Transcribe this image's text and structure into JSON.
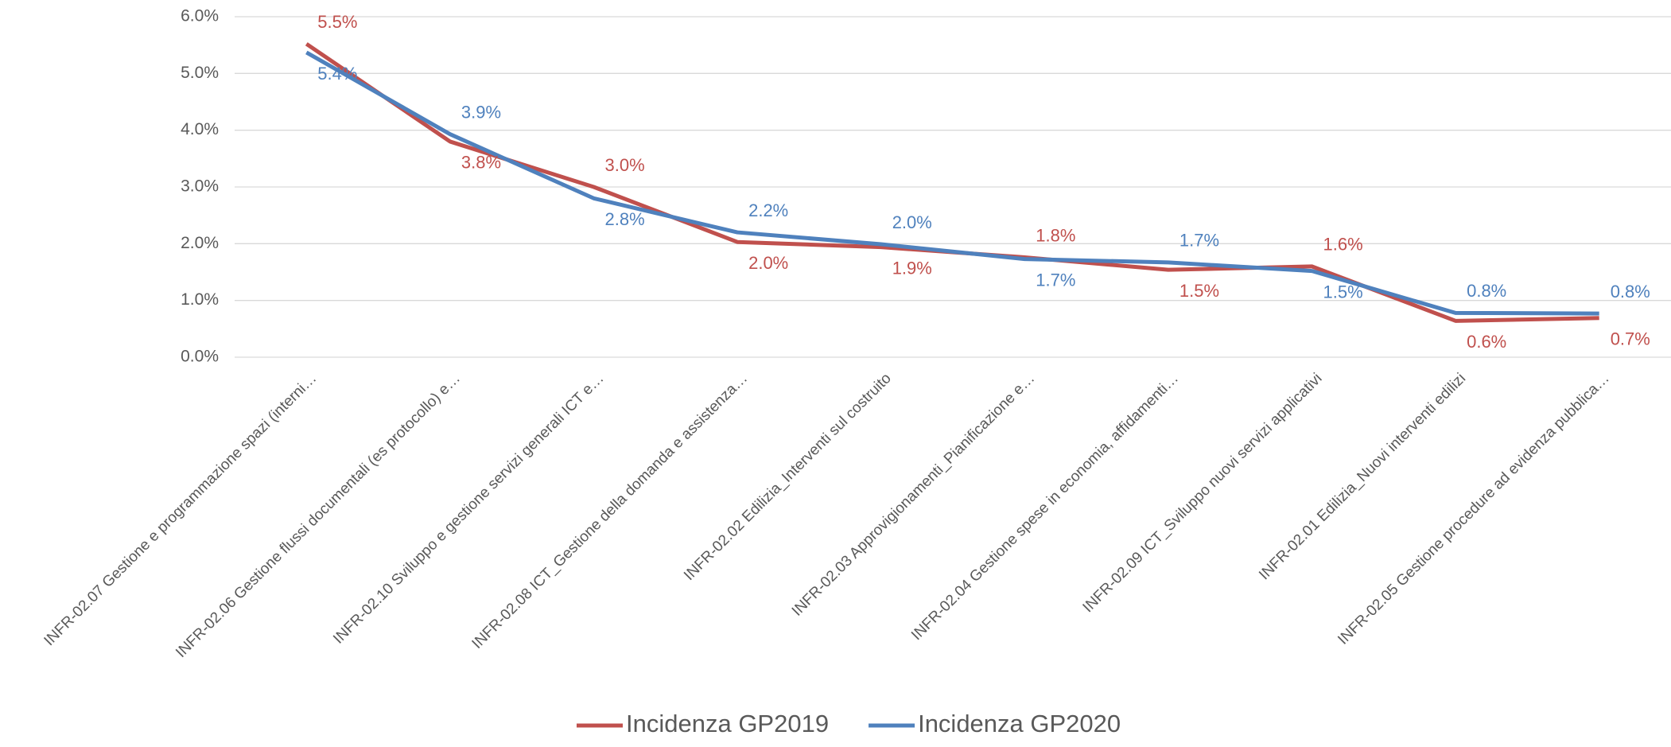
{
  "chart_data": {
    "type": "line",
    "categories": [
      "INFR-02.07 Gestione e programmazione spazi (interni…",
      "INFR-02.06 Gestione flussi documentali (es protocollo) e…",
      "INFR-02.10 Sviluppo e gestione servizi generali ICT e…",
      "INFR-02.08 ICT_Gestione della domanda e assistenza…",
      "INFR-02.02 Edilizia_Interventi sul costruito",
      "INFR-02.03 Approvigionamenti_Pianificazione e…",
      "INFR-02.04 Gestione spese in economia, affidamenti…",
      "INFR-02.09 ICT_Sviluppo nuovi servizi applicativi",
      "INFR-02.01 Edilizia_Nuovi interventi edilizi",
      "INFR-02.05 Gestione procedure ad evidenza pubblica…"
    ],
    "series": [
      {
        "name": "Incidenza GP2019",
        "color": "#c0504d",
        "values": [
          5.52,
          3.8,
          3.0,
          2.03,
          1.94,
          1.76,
          1.54,
          1.6,
          0.64,
          0.69
        ],
        "value_labels": [
          "5.5%",
          "3.8%",
          "3.0%",
          "2.0%",
          "1.9%",
          "1.8%",
          "1.5%",
          "1.6%",
          "0.6%",
          "0.7%"
        ]
      },
      {
        "name": "Incidenza GP2020",
        "color": "#4f81bd",
        "values": [
          5.37,
          3.93,
          2.8,
          2.2,
          1.99,
          1.73,
          1.67,
          1.52,
          0.78,
          0.77
        ],
        "value_labels": [
          "5.4%",
          "3.9%",
          "2.8%",
          "2.2%",
          "2.0%",
          "1.7%",
          "1.7%",
          "1.5%",
          "0.8%",
          "0.8%"
        ]
      }
    ],
    "ylim": [
      0,
      6
    ],
    "yticks": [
      {
        "value": 0,
        "label": "0.0%"
      },
      {
        "value": 1,
        "label": "1.0%"
      },
      {
        "value": 2,
        "label": "2.0%"
      },
      {
        "value": 3,
        "label": "3.0%"
      },
      {
        "value": 4,
        "label": "4.0%"
      },
      {
        "value": 5,
        "label": "5.0%"
      },
      {
        "value": 6,
        "label": "6.0%"
      }
    ],
    "grid": true,
    "legend": "bottom"
  }
}
